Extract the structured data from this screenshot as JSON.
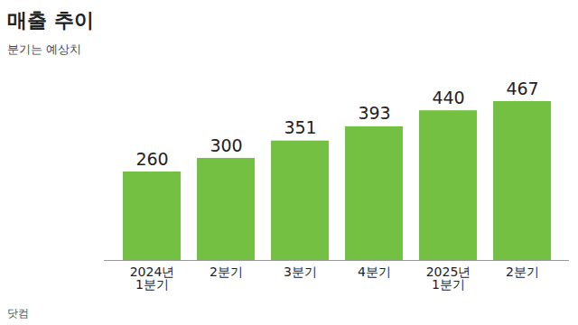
{
  "chart_data": {
    "type": "bar",
    "title": "매출 추이",
    "subtitle": "분기는 예상치",
    "source": "닷컴",
    "categories": [
      "2024년\n1분기",
      "2분기",
      "3분기",
      "4분기",
      "2025년\n1분기",
      "2분기"
    ],
    "values": [
      260,
      300,
      351,
      393,
      440,
      467
    ],
    "color": "#74c043",
    "ylim": [
      0,
      520
    ],
    "data_labels": true,
    "tick_labels": "x"
  }
}
